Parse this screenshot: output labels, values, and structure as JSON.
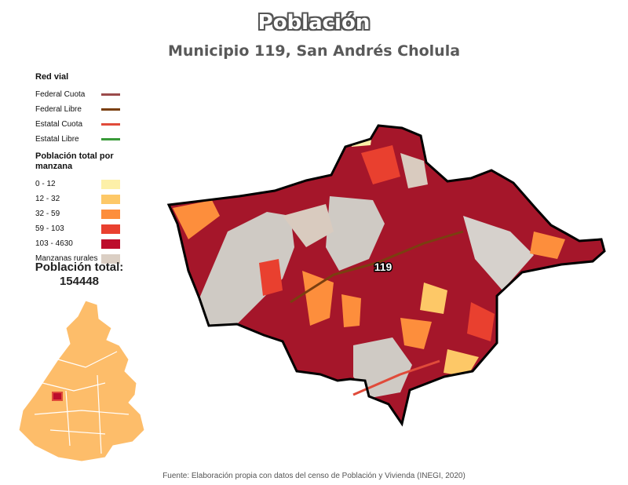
{
  "title": "Población",
  "subtitle": "Municipio 119, San Andrés Cholula",
  "legend": {
    "roads_heading": "Red vial",
    "roads": [
      {
        "label": "Federal Cuota",
        "color": "#9b4b4b"
      },
      {
        "label": "Federal Libre",
        "color": "#7a3f10"
      },
      {
        "label": "Estatal Cuota",
        "color": "#e04b3a"
      },
      {
        "label": "Estatal Libre",
        "color": "#3a9a3a"
      }
    ],
    "population_heading": "Población total por manzana",
    "classes": [
      {
        "label": "0 - 12",
        "color": "#fdf0a8"
      },
      {
        "label": "12 - 32",
        "color": "#fdc867"
      },
      {
        "label": "32 - 59",
        "color": "#fd8e3c"
      },
      {
        "label": "59 - 103",
        "color": "#e9402f"
      },
      {
        "label": "103 - 4630",
        "color": "#bd0d2c"
      }
    ],
    "rural_label": "Manzanas rurales",
    "rural_color": "#dbcfc4"
  },
  "total": {
    "label": "Población total:",
    "value": "154448"
  },
  "map": {
    "municipality_label": "119",
    "urban_color": "#a5162a",
    "rural_color": "#cfcac4"
  },
  "source": "Fuente: Elaboración propia con datos del censo de Población y Vivienda (INEGI, 2020)"
}
